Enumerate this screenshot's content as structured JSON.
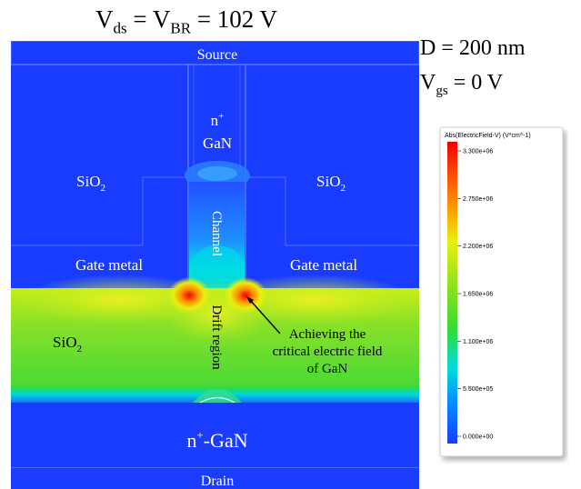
{
  "title": {
    "prefix": "V",
    "sub1": "ds",
    "eq": " = V",
    "sub2": "BR",
    "value": " =  102 V"
  },
  "params": {
    "d_text": "D = 200 nm",
    "vgs_prefix": "V",
    "vgs_sub": "gs",
    "vgs_value": " = 0 V"
  },
  "labels": {
    "source": "Source",
    "drain": "Drain",
    "nplus_gan_top_1": "n",
    "nplus_gan_top_sup": "+",
    "nplus_gan_top_2": "GaN",
    "sio2_left": "SiO",
    "sio2_sub": "2",
    "sio2_right": "SiO",
    "sio2_drift": "SiO",
    "channel": "Channel",
    "gate_metal_left": "Gate metal",
    "gate_metal_right": "Gate metal",
    "drift_region": "Drift region",
    "nplus_gan_bottom_1": "n",
    "nplus_gan_bottom_sup": "+",
    "nplus_gan_bottom_2": "-GaN",
    "annotation_line1": "Achieving the",
    "annotation_line2": "critical electric field",
    "annotation_line3": "of GaN"
  },
  "legend": {
    "title": "Abs(ElectricField-V) (V*cm^-1)",
    "ticks": [
      "3.300e+06",
      "2.750e+06",
      "2.200e+06",
      "1.650e+06",
      "1.100e+06",
      "5.500e+05",
      "0.000e+00"
    ],
    "colors": {
      "min": "#1a3cff",
      "cyan": "#00e0ff",
      "green": "#33dd33",
      "yellow": "#e8ee10",
      "orange": "#ff8800",
      "max": "#ee0000"
    }
  }
}
